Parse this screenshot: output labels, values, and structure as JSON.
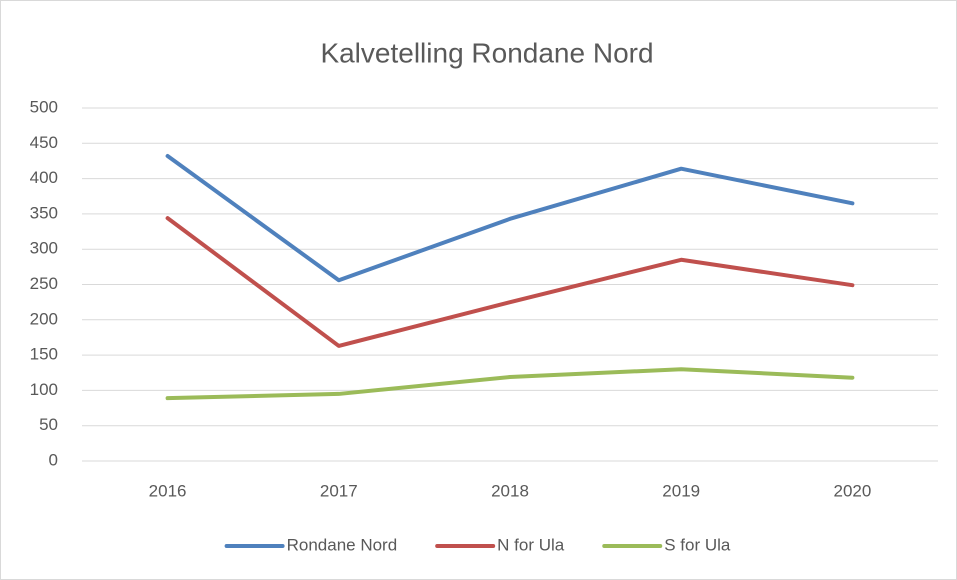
{
  "chart_data": {
    "type": "line",
    "title": "Kalvetelling Rondane Nord",
    "categories": [
      "2016",
      "2017",
      "2018",
      "2019",
      "2020"
    ],
    "series": [
      {
        "name": "Rondane Nord",
        "color": "#4f81bd",
        "values": [
          432,
          256,
          343,
          414,
          365
        ]
      },
      {
        "name": "N for Ula",
        "color": "#c0504d",
        "values": [
          344,
          163,
          225,
          285,
          249
        ]
      },
      {
        "name": "S for Ula",
        "color": "#9bbb59",
        "values": [
          89,
          95,
          119,
          130,
          118
        ]
      }
    ],
    "ylim": [
      0,
      500
    ],
    "yticks": [
      0,
      50,
      100,
      150,
      200,
      250,
      300,
      350,
      400,
      450,
      500
    ],
    "grid": true,
    "legend": "bottom"
  }
}
